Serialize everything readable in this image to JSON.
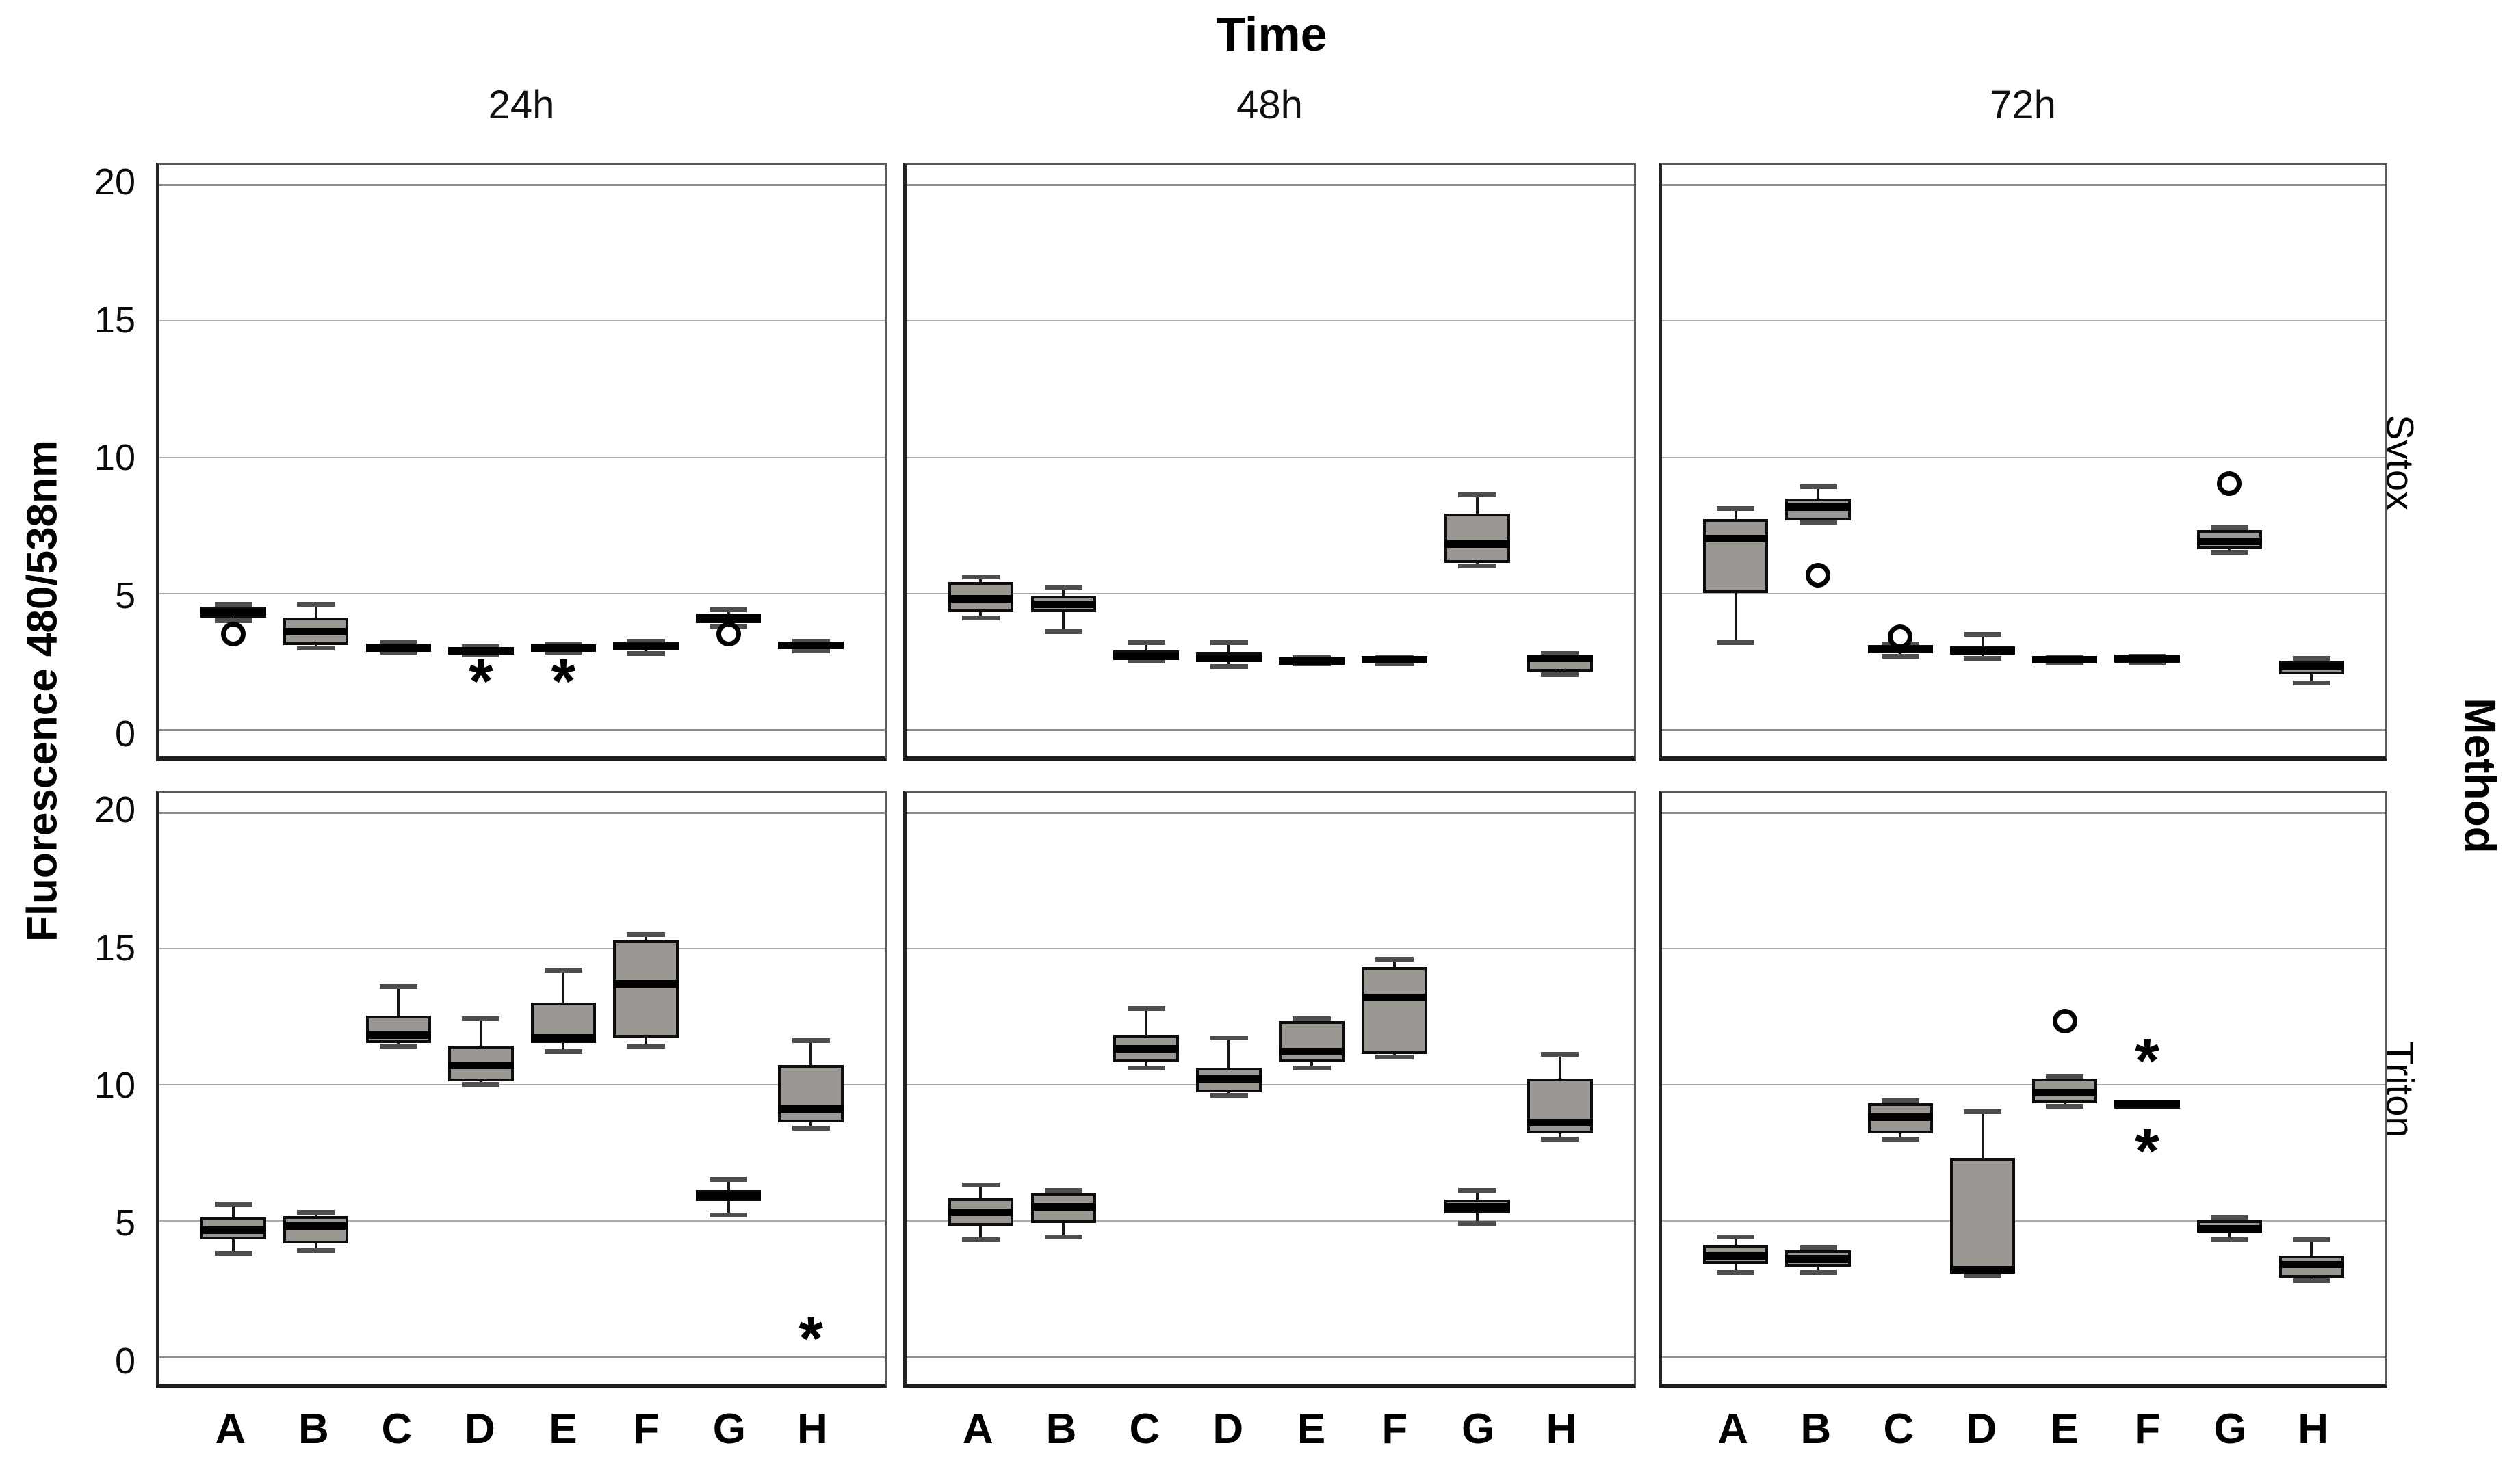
{
  "colors": {
    "box_fill": "#9b9793",
    "box_border": "#0d0d0d",
    "median": "#000000",
    "gridline": "#aaaaaa",
    "gridline_major": "#8d8d8d",
    "background": "#ffffff"
  },
  "chart_data": {
    "type": "boxplot",
    "title": "Time",
    "ylabel": "Fluorescence  480/538nm",
    "facet_columns": [
      "24h",
      "48h",
      "72h"
    ],
    "facet_rows": [
      "Sytox",
      "Triton"
    ],
    "facet_row_group_label": "Method",
    "categories": [
      "A",
      "B",
      "C",
      "D",
      "E",
      "F",
      "G",
      "H"
    ],
    "y_ticks": [
      0,
      5,
      10,
      15,
      20
    ],
    "ylim": [
      -1.0,
      20.7
    ],
    "grid": "horizontal-only",
    "legend": "none",
    "outlier_glyphs": {
      "asterisk": "*",
      "circle": "circle"
    },
    "panels": [
      {
        "method": "Sytox",
        "time": "24h",
        "boxes": [
          {
            "cat": "A",
            "lo": 4.0,
            "q1": 4.1,
            "med": 4.3,
            "q3": 4.5,
            "hi": 4.6,
            "out": [
              {
                "v": 3.5,
                "glyph": "circle"
              }
            ]
          },
          {
            "cat": "B",
            "lo": 3.0,
            "q1": 3.1,
            "med": 3.6,
            "q3": 4.1,
            "hi": 4.6,
            "out": []
          },
          {
            "cat": "C",
            "lo": 2.85,
            "q1": 2.9,
            "med": 3.0,
            "q3": 3.15,
            "hi": 3.2,
            "out": []
          },
          {
            "cat": "D",
            "lo": 2.75,
            "q1": 2.8,
            "med": 2.9,
            "q3": 3.0,
            "hi": 3.05,
            "out": [
              {
                "v": 2.2,
                "glyph": "asterisk"
              }
            ]
          },
          {
            "cat": "E",
            "lo": 2.85,
            "q1": 2.9,
            "med": 3.0,
            "q3": 3.1,
            "hi": 3.15,
            "out": [
              {
                "v": 2.2,
                "glyph": "asterisk"
              }
            ]
          },
          {
            "cat": "F",
            "lo": 2.8,
            "q1": 2.9,
            "med": 3.05,
            "q3": 3.2,
            "hi": 3.25,
            "out": []
          },
          {
            "cat": "G",
            "lo": 3.8,
            "q1": 3.9,
            "med": 4.1,
            "q3": 4.25,
            "hi": 4.4,
            "out": [
              {
                "v": 3.5,
                "glyph": "circle"
              }
            ]
          },
          {
            "cat": "H",
            "lo": 2.9,
            "q1": 2.95,
            "med": 3.1,
            "q3": 3.2,
            "hi": 3.25,
            "out": []
          }
        ]
      },
      {
        "method": "Sytox",
        "time": "48h",
        "boxes": [
          {
            "cat": "A",
            "lo": 4.1,
            "q1": 4.3,
            "med": 4.8,
            "q3": 5.4,
            "hi": 5.6,
            "out": []
          },
          {
            "cat": "B",
            "lo": 3.6,
            "q1": 4.3,
            "med": 4.6,
            "q3": 4.9,
            "hi": 5.2,
            "out": []
          },
          {
            "cat": "C",
            "lo": 2.5,
            "q1": 2.55,
            "med": 2.7,
            "q3": 2.9,
            "hi": 3.2,
            "out": []
          },
          {
            "cat": "D",
            "lo": 2.3,
            "q1": 2.45,
            "med": 2.6,
            "q3": 2.85,
            "hi": 3.2,
            "out": []
          },
          {
            "cat": "E",
            "lo": 2.4,
            "q1": 2.45,
            "med": 2.5,
            "q3": 2.6,
            "hi": 2.65,
            "out": []
          },
          {
            "cat": "F",
            "lo": 2.4,
            "q1": 2.45,
            "med": 2.55,
            "q3": 2.6,
            "hi": 2.65,
            "out": []
          },
          {
            "cat": "G",
            "lo": 6.0,
            "q1": 6.1,
            "med": 6.8,
            "q3": 7.9,
            "hi": 8.6,
            "out": []
          },
          {
            "cat": "H",
            "lo": 2.0,
            "q1": 2.1,
            "med": 2.6,
            "q3": 2.75,
            "hi": 2.8,
            "out": []
          }
        ]
      },
      {
        "method": "Sytox",
        "time": "72h",
        "boxes": [
          {
            "cat": "A",
            "lo": 3.2,
            "q1": 5.0,
            "med": 7.0,
            "q3": 7.7,
            "hi": 8.1,
            "out": []
          },
          {
            "cat": "B",
            "lo": 7.6,
            "q1": 7.65,
            "med": 8.15,
            "q3": 8.45,
            "hi": 8.9,
            "out": [
              {
                "v": 5.65,
                "glyph": "circle"
              }
            ]
          },
          {
            "cat": "C",
            "lo": 2.7,
            "q1": 2.8,
            "med": 2.95,
            "q3": 3.1,
            "hi": 3.15,
            "out": [
              {
                "v": 3.4,
                "glyph": "circle"
              }
            ]
          },
          {
            "cat": "D",
            "lo": 2.6,
            "q1": 2.75,
            "med": 2.9,
            "q3": 3.05,
            "hi": 3.5,
            "out": []
          },
          {
            "cat": "E",
            "lo": 2.45,
            "q1": 2.5,
            "med": 2.55,
            "q3": 2.6,
            "hi": 2.65,
            "out": []
          },
          {
            "cat": "F",
            "lo": 2.45,
            "q1": 2.5,
            "med": 2.6,
            "q3": 2.65,
            "hi": 2.7,
            "out": []
          },
          {
            "cat": "G",
            "lo": 6.5,
            "q1": 6.6,
            "med": 6.9,
            "q3": 7.3,
            "hi": 7.4,
            "out": [
              {
                "v": 9.0,
                "glyph": "circle"
              }
            ]
          },
          {
            "cat": "H",
            "lo": 1.7,
            "q1": 2.0,
            "med": 2.3,
            "q3": 2.5,
            "hi": 2.6,
            "out": []
          }
        ]
      },
      {
        "method": "Triton",
        "time": "24h",
        "boxes": [
          {
            "cat": "A",
            "lo": 3.8,
            "q1": 4.3,
            "med": 4.65,
            "q3": 5.1,
            "hi": 5.6,
            "out": []
          },
          {
            "cat": "B",
            "lo": 3.9,
            "q1": 4.15,
            "med": 4.8,
            "q3": 5.15,
            "hi": 5.3,
            "out": []
          },
          {
            "cat": "C",
            "lo": 11.4,
            "q1": 11.5,
            "med": 11.8,
            "q3": 12.5,
            "hi": 13.6,
            "out": []
          },
          {
            "cat": "D",
            "lo": 10.0,
            "q1": 10.1,
            "med": 10.7,
            "q3": 11.4,
            "hi": 12.4,
            "out": []
          },
          {
            "cat": "E",
            "lo": 11.2,
            "q1": 11.5,
            "med": 11.7,
            "q3": 13.0,
            "hi": 14.2,
            "out": []
          },
          {
            "cat": "F",
            "lo": 11.4,
            "q1": 11.7,
            "med": 13.7,
            "q3": 15.3,
            "hi": 15.5,
            "out": []
          },
          {
            "cat": "G",
            "lo": 5.2,
            "q1": 5.7,
            "med": 5.9,
            "q3": 6.1,
            "hi": 6.5,
            "out": []
          },
          {
            "cat": "H",
            "lo": 8.4,
            "q1": 8.6,
            "med": 9.1,
            "q3": 10.7,
            "hi": 11.6,
            "out": [
              {
                "v": 1.1,
                "glyph": "asterisk"
              }
            ]
          }
        ]
      },
      {
        "method": "Triton",
        "time": "48h",
        "boxes": [
          {
            "cat": "A",
            "lo": 4.3,
            "q1": 4.8,
            "med": 5.3,
            "q3": 5.8,
            "hi": 6.3,
            "out": []
          },
          {
            "cat": "B",
            "lo": 4.4,
            "q1": 4.9,
            "med": 5.5,
            "q3": 6.0,
            "hi": 6.1,
            "out": []
          },
          {
            "cat": "C",
            "lo": 10.6,
            "q1": 10.8,
            "med": 11.3,
            "q3": 11.8,
            "hi": 12.8,
            "out": []
          },
          {
            "cat": "D",
            "lo": 9.6,
            "q1": 9.7,
            "med": 10.2,
            "q3": 10.6,
            "hi": 11.7,
            "out": []
          },
          {
            "cat": "E",
            "lo": 10.6,
            "q1": 10.8,
            "med": 11.2,
            "q3": 12.3,
            "hi": 12.4,
            "out": []
          },
          {
            "cat": "F",
            "lo": 11.0,
            "q1": 11.1,
            "med": 13.2,
            "q3": 14.3,
            "hi": 14.6,
            "out": []
          },
          {
            "cat": "G",
            "lo": 4.9,
            "q1": 5.25,
            "med": 5.5,
            "q3": 5.75,
            "hi": 6.1,
            "out": []
          },
          {
            "cat": "H",
            "lo": 8.0,
            "q1": 8.2,
            "med": 8.6,
            "q3": 10.2,
            "hi": 11.1,
            "out": []
          }
        ]
      },
      {
        "method": "Triton",
        "time": "72h",
        "boxes": [
          {
            "cat": "A",
            "lo": 3.1,
            "q1": 3.4,
            "med": 3.7,
            "q3": 4.1,
            "hi": 4.4,
            "out": []
          },
          {
            "cat": "B",
            "lo": 3.1,
            "q1": 3.3,
            "med": 3.6,
            "q3": 3.9,
            "hi": 4.0,
            "out": []
          },
          {
            "cat": "C",
            "lo": 8.0,
            "q1": 8.2,
            "med": 8.8,
            "q3": 9.3,
            "hi": 9.4,
            "out": []
          },
          {
            "cat": "D",
            "lo": 3.0,
            "q1": 3.1,
            "med": 3.2,
            "q3": 7.3,
            "hi": 9.0,
            "out": []
          },
          {
            "cat": "E",
            "lo": 9.2,
            "q1": 9.3,
            "med": 9.7,
            "q3": 10.2,
            "hi": 10.3,
            "out": [
              {
                "v": 12.3,
                "glyph": "circle"
              }
            ]
          },
          {
            "cat": "F",
            "lo": 9.3,
            "q1": 9.3,
            "med": 9.3,
            "q3": 9.3,
            "hi": 9.3,
            "out": [
              {
                "v": 11.3,
                "glyph": "asterisk"
              },
              {
                "v": 8.0,
                "glyph": "asterisk"
              }
            ]
          },
          {
            "cat": "G",
            "lo": 4.3,
            "q1": 4.55,
            "med": 4.7,
            "q3": 5.0,
            "hi": 5.1,
            "out": []
          },
          {
            "cat": "H",
            "lo": 2.8,
            "q1": 2.9,
            "med": 3.4,
            "q3": 3.7,
            "hi": 4.3,
            "out": []
          }
        ]
      }
    ]
  }
}
